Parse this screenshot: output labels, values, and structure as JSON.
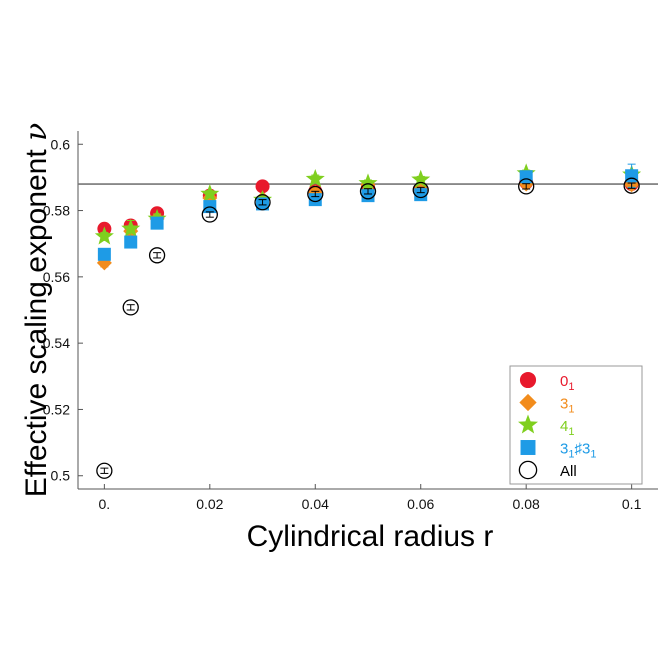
{
  "chart_data": {
    "type": "scatter",
    "title": "",
    "xlabel": "Cylindrical radius r",
    "ylabel": "Effective scaling exponent ",
    "ylabel_symbol": "ν",
    "xlim": [
      -0.005,
      0.105
    ],
    "ylim": [
      0.496,
      0.604
    ],
    "x_ticks": [
      0,
      0.02,
      0.04,
      0.06,
      0.08,
      0.1
    ],
    "x_tick_labels": [
      "0.",
      "0.02",
      "0.04",
      "0.06",
      "0.08",
      "0.1"
    ],
    "y_ticks": [
      0.5,
      0.52,
      0.54,
      0.56,
      0.58,
      0.6
    ],
    "y_tick_labels": [
      "0.5",
      "0.52",
      "0.54",
      "0.56",
      "0.58",
      "0.6"
    ],
    "reference_line": {
      "y": 0.588,
      "color": "#777777"
    },
    "grid": false,
    "legend_position": "bottom-right",
    "series": [
      {
        "name": "0",
        "subscript": "1",
        "marker": "circle-filled",
        "color": "#e8192c",
        "x": [
          0,
          0.005,
          0.01,
          0.02,
          0.03,
          0.04,
          0.05,
          0.06,
          0.08,
          0.1
        ],
        "y": [
          0.5745,
          0.5755,
          0.5792,
          0.5845,
          0.5873,
          0.5858,
          0.5872,
          0.5866,
          0.5885,
          0.588
        ],
        "err": [
          0.0015,
          0.0012,
          0.001,
          0.0012,
          0.001,
          0.0012,
          0.001,
          0.001,
          0.001,
          0.0012
        ]
      },
      {
        "name": "3",
        "subscript": "1",
        "marker": "diamond",
        "color": "#f28c1c",
        "x": [
          0,
          0.005,
          0.01,
          0.02,
          0.03,
          0.04,
          0.05,
          0.06,
          0.08,
          0.1
        ],
        "y": [
          0.5642,
          0.5738,
          0.5775,
          0.5838,
          0.5836,
          0.5855,
          0.5878,
          0.5864,
          0.588,
          0.5878
        ],
        "err": [
          0.0012,
          0.0012,
          0.0012,
          0.001,
          0.001,
          0.001,
          0.001,
          0.001,
          0.001,
          0.001
        ]
      },
      {
        "name": "4",
        "subscript": "1",
        "marker": "star",
        "color": "#7fcf1e",
        "x": [
          0,
          0.005,
          0.01,
          0.02,
          0.03,
          0.04,
          0.05,
          0.06,
          0.08,
          0.1
        ],
        "y": [
          0.5722,
          0.5745,
          0.5775,
          0.585,
          0.5832,
          0.5895,
          0.5882,
          0.5893,
          0.5912,
          0.5908
        ],
        "err": [
          0.0012,
          0.0025,
          0.0015,
          0.001,
          0.001,
          0.0012,
          0.001,
          0.001,
          0.001,
          0.0012
        ]
      },
      {
        "name": "3",
        "subscript": "1",
        "name_suffix": "♯3",
        "subscript2": "1",
        "marker": "square",
        "color": "#1e9be6",
        "x": [
          0,
          0.005,
          0.01,
          0.02,
          0.03,
          0.04,
          0.05,
          0.06,
          0.08,
          0.1
        ],
        "y": [
          0.5668,
          0.5705,
          0.5762,
          0.5812,
          0.582,
          0.5833,
          0.5845,
          0.5848,
          0.5902,
          0.5905
        ],
        "err": [
          0.0015,
          0.0012,
          0.001,
          0.001,
          0.001,
          0.001,
          0.001,
          0.001,
          0.001,
          0.0035
        ]
      },
      {
        "name": "All",
        "marker": "circle-open",
        "color": "#000000",
        "x": [
          0,
          0.005,
          0.01,
          0.02,
          0.03,
          0.04,
          0.05,
          0.06,
          0.08,
          0.1
        ],
        "y": [
          0.5015,
          0.5508,
          0.5665,
          0.5788,
          0.5825,
          0.585,
          0.5858,
          0.5862,
          0.5873,
          0.5875
        ],
        "err": [
          0.0008,
          0.0008,
          0.0008,
          0.0008,
          0.0008,
          0.0008,
          0.0008,
          0.0008,
          0.0008,
          0.0008
        ]
      }
    ]
  }
}
